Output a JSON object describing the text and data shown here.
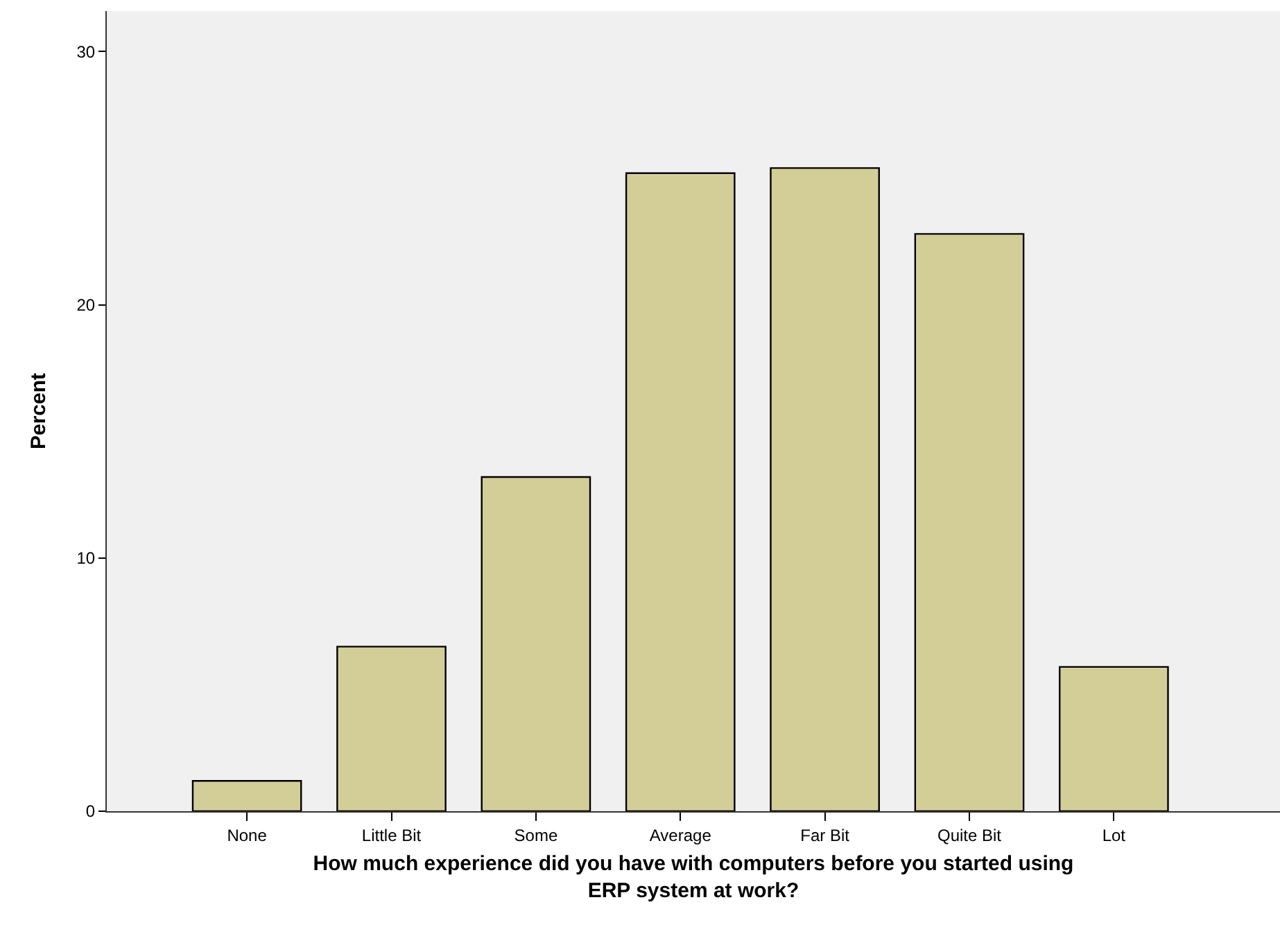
{
  "chart_data": {
    "type": "bar",
    "xlabel": "How much experience did you have with computers before you started using ERP system at work?",
    "ylabel": "Percent",
    "categories": [
      "None",
      "Little Bit",
      "Some",
      "Average",
      "Far Bit",
      "Quite Bit",
      "Lot"
    ],
    "values": [
      1.2,
      6.5,
      13.2,
      25.2,
      25.4,
      22.8,
      5.7
    ],
    "color": "#d3ce98",
    "ylim": [
      0,
      31.6
    ],
    "yticks": [
      0,
      10,
      20,
      30
    ],
    "grid": false
  }
}
